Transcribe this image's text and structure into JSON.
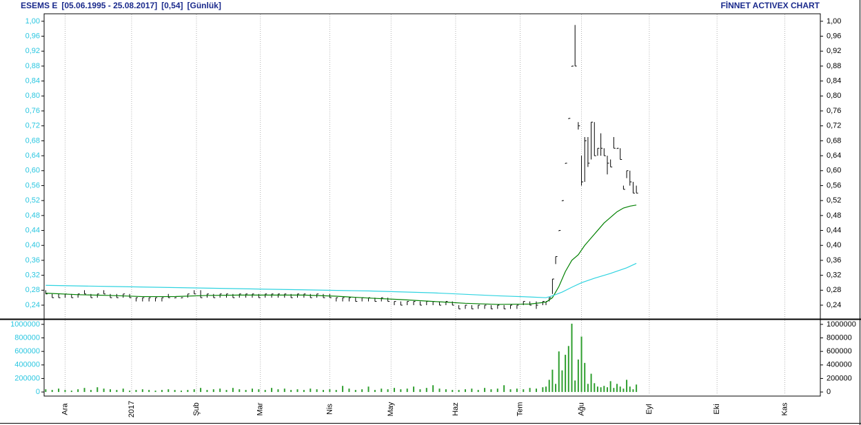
{
  "chart_data": [
    {
      "type": "ohlc",
      "title": "ESEMS E",
      "date_range": "[05.06.1995 - 25.08.2017]",
      "last": "[0,54]",
      "period": "[Günlük]",
      "source": "FİNNET ACTIVEX CHART",
      "color": "#000000",
      "x": [
        0,
        2,
        4,
        6,
        8,
        10,
        12,
        14,
        16,
        18,
        20,
        22,
        24,
        26,
        28,
        30,
        32,
        34,
        36,
        38,
        40,
        42,
        44,
        46,
        48,
        50,
        52,
        54,
        56,
        58,
        60,
        62,
        64,
        66,
        68,
        70,
        72,
        74,
        76,
        78,
        80,
        82,
        84,
        86,
        88,
        90,
        92,
        94,
        96,
        98,
        100,
        102,
        104,
        106,
        108,
        110,
        112,
        114,
        116,
        118,
        120,
        122,
        124,
        126,
        128,
        130,
        132,
        134,
        136,
        138,
        140,
        142,
        144,
        146,
        148,
        150,
        152,
        154,
        155,
        156,
        157,
        158,
        159,
        160,
        161,
        162,
        163,
        164,
        165,
        166,
        167,
        168,
        169,
        170,
        171,
        172,
        173,
        174,
        175,
        176,
        177,
        178,
        179,
        180,
        181,
        182,
        183
      ],
      "high": [
        0.28,
        0.27,
        0.27,
        0.27,
        0.27,
        0.27,
        0.28,
        0.27,
        0.27,
        0.28,
        0.27,
        0.27,
        0.27,
        0.27,
        0.26,
        0.26,
        0.26,
        0.26,
        0.26,
        0.27,
        0.26,
        0.26,
        0.27,
        0.28,
        0.28,
        0.27,
        0.27,
        0.27,
        0.27,
        0.27,
        0.27,
        0.27,
        0.27,
        0.27,
        0.27,
        0.27,
        0.27,
        0.27,
        0.27,
        0.27,
        0.27,
        0.27,
        0.27,
        0.27,
        0.27,
        0.26,
        0.26,
        0.26,
        0.26,
        0.26,
        0.26,
        0.26,
        0.26,
        0.26,
        0.25,
        0.25,
        0.25,
        0.25,
        0.25,
        0.25,
        0.25,
        0.25,
        0.25,
        0.25,
        0.24,
        0.24,
        0.24,
        0.24,
        0.24,
        0.24,
        0.24,
        0.24,
        0.24,
        0.24,
        0.25,
        0.25,
        0.25,
        0.25,
        0.25,
        0.26,
        0.31,
        0.37,
        0.44,
        0.52,
        0.62,
        0.74,
        0.88,
        0.99,
        0.73,
        0.64,
        0.69,
        0.69,
        0.73,
        0.73,
        0.66,
        0.7,
        0.66,
        0.64,
        0.63,
        0.69,
        0.66,
        0.66,
        0.56,
        0.6,
        0.6,
        0.57,
        0.56
      ],
      "low": [
        0.27,
        0.26,
        0.26,
        0.26,
        0.26,
        0.26,
        0.27,
        0.26,
        0.26,
        0.27,
        0.26,
        0.26,
        0.26,
        0.26,
        0.25,
        0.25,
        0.25,
        0.25,
        0.25,
        0.26,
        0.26,
        0.26,
        0.26,
        0.27,
        0.26,
        0.26,
        0.26,
        0.26,
        0.26,
        0.26,
        0.26,
        0.26,
        0.26,
        0.26,
        0.26,
        0.26,
        0.26,
        0.26,
        0.26,
        0.26,
        0.26,
        0.26,
        0.26,
        0.26,
        0.26,
        0.25,
        0.25,
        0.25,
        0.25,
        0.25,
        0.25,
        0.25,
        0.25,
        0.25,
        0.24,
        0.24,
        0.24,
        0.24,
        0.24,
        0.24,
        0.24,
        0.24,
        0.24,
        0.24,
        0.23,
        0.23,
        0.23,
        0.23,
        0.23,
        0.23,
        0.23,
        0.23,
        0.23,
        0.23,
        0.24,
        0.24,
        0.23,
        0.24,
        0.24,
        0.25,
        0.27,
        0.35,
        0.44,
        0.52,
        0.62,
        0.74,
        0.88,
        0.88,
        0.71,
        0.56,
        0.57,
        0.61,
        0.63,
        0.64,
        0.64,
        0.64,
        0.64,
        0.59,
        0.61,
        0.66,
        0.66,
        0.63,
        0.55,
        0.58,
        0.56,
        0.54,
        0.54
      ],
      "close": [
        0.27,
        0.26,
        0.26,
        0.27,
        0.26,
        0.27,
        0.27,
        0.26,
        0.27,
        0.27,
        0.26,
        0.26,
        0.27,
        0.26,
        0.26,
        0.26,
        0.26,
        0.26,
        0.26,
        0.26,
        0.26,
        0.26,
        0.27,
        0.27,
        0.26,
        0.27,
        0.26,
        0.27,
        0.27,
        0.26,
        0.27,
        0.27,
        0.27,
        0.26,
        0.27,
        0.27,
        0.27,
        0.27,
        0.26,
        0.27,
        0.27,
        0.26,
        0.27,
        0.26,
        0.26,
        0.26,
        0.26,
        0.26,
        0.25,
        0.26,
        0.26,
        0.25,
        0.26,
        0.25,
        0.25,
        0.24,
        0.25,
        0.25,
        0.24,
        0.25,
        0.25,
        0.24,
        0.25,
        0.24,
        0.23,
        0.24,
        0.23,
        0.24,
        0.24,
        0.23,
        0.24,
        0.23,
        0.24,
        0.24,
        0.25,
        0.24,
        0.24,
        0.25,
        0.25,
        0.26,
        0.31,
        0.37,
        0.44,
        0.52,
        0.62,
        0.74,
        0.88,
        0.88,
        0.72,
        0.57,
        0.68,
        0.62,
        0.73,
        0.64,
        0.66,
        0.66,
        0.64,
        0.62,
        0.61,
        0.66,
        0.66,
        0.63,
        0.55,
        0.6,
        0.57,
        0.54,
        0.54
      ],
      "series": [
        {
          "color": "#008000",
          "x": [
            0,
            10,
            20,
            30,
            40,
            50,
            60,
            70,
            80,
            90,
            100,
            110,
            120,
            130,
            140,
            150,
            155,
            157,
            159,
            161,
            163,
            165,
            167,
            169,
            171,
            173,
            175,
            177,
            179,
            181,
            183
          ],
          "values": [
            0.272,
            0.268,
            0.266,
            0.263,
            0.263,
            0.266,
            0.267,
            0.267,
            0.267,
            0.264,
            0.259,
            0.255,
            0.25,
            0.245,
            0.242,
            0.243,
            0.248,
            0.26,
            0.29,
            0.33,
            0.36,
            0.375,
            0.4,
            0.42,
            0.44,
            0.46,
            0.475,
            0.49,
            0.5,
            0.505,
            0.508
          ]
        },
        {
          "color": "#2ed3e0",
          "x": [
            0,
            20,
            40,
            60,
            80,
            100,
            120,
            140,
            150,
            155,
            157,
            160,
            163,
            166,
            170,
            175,
            180,
            183
          ],
          "values": [
            0.293,
            0.29,
            0.287,
            0.284,
            0.281,
            0.278,
            0.273,
            0.265,
            0.262,
            0.26,
            0.265,
            0.275,
            0.288,
            0.3,
            0.312,
            0.325,
            0.34,
            0.352
          ]
        }
      ],
      "xlim": [
        -0.5,
        240
      ],
      "xticks": [
        {
          "value": 6,
          "label": "Ara"
        },
        {
          "value": 26.6,
          "label": "2017"
        },
        {
          "value": 46.7,
          "label": "Şub"
        },
        {
          "value": 66.5,
          "label": "Mar"
        },
        {
          "value": 88,
          "label": "Nis"
        },
        {
          "value": 107,
          "label": "May"
        },
        {
          "value": 127,
          "label": "Haz"
        },
        {
          "value": 147,
          "label": "Tem"
        },
        {
          "value": 166,
          "label": "Ağu"
        },
        {
          "value": 187,
          "label": "Eyl"
        },
        {
          "value": 208,
          "label": "Eki"
        },
        {
          "value": 229,
          "label": "Kas"
        }
      ],
      "ylim": [
        0.205,
        1.02
      ],
      "yticks": [
        {
          "value": 0.24,
          "label": "0,24"
        },
        {
          "value": 0.28,
          "label": "0,28"
        },
        {
          "value": 0.32,
          "label": "0,32"
        },
        {
          "value": 0.36,
          "label": "0,36"
        },
        {
          "value": 0.4,
          "label": "0,40"
        },
        {
          "value": 0.44,
          "label": "0,44"
        },
        {
          "value": 0.48,
          "label": "0,48"
        },
        {
          "value": 0.52,
          "label": "0,52"
        },
        {
          "value": 0.56,
          "label": "0,56"
        },
        {
          "value": 0.6,
          "label": "0,60"
        },
        {
          "value": 0.64,
          "label": "0,64"
        },
        {
          "value": 0.68,
          "label": "0,68"
        },
        {
          "value": 0.72,
          "label": "0,72"
        },
        {
          "value": 0.76,
          "label": "0,76"
        },
        {
          "value": 0.8,
          "label": "0,80"
        },
        {
          "value": 0.84,
          "label": "0,84"
        },
        {
          "value": 0.88,
          "label": "0,88"
        },
        {
          "value": 0.92,
          "label": "0,92"
        },
        {
          "value": 0.96,
          "label": "0,96"
        },
        {
          "value": 1.0,
          "label": "1,00"
        }
      ]
    },
    {
      "type": "bar",
      "color": "#2e9e2e",
      "x": [
        0,
        2,
        4,
        6,
        8,
        10,
        12,
        14,
        16,
        18,
        20,
        22,
        24,
        26,
        28,
        30,
        32,
        34,
        36,
        38,
        40,
        42,
        44,
        46,
        48,
        50,
        52,
        54,
        56,
        58,
        60,
        62,
        64,
        66,
        68,
        70,
        72,
        74,
        76,
        78,
        80,
        82,
        84,
        86,
        88,
        90,
        92,
        94,
        96,
        98,
        100,
        102,
        104,
        106,
        108,
        110,
        112,
        114,
        116,
        118,
        120,
        122,
        124,
        126,
        128,
        130,
        132,
        134,
        136,
        138,
        140,
        142,
        144,
        146,
        148,
        150,
        152,
        154,
        155,
        156,
        157,
        158,
        159,
        160,
        161,
        162,
        163,
        164,
        165,
        166,
        167,
        168,
        169,
        170,
        171,
        172,
        173,
        174,
        175,
        176,
        177,
        178,
        179,
        180,
        181,
        182,
        183
      ],
      "values": [
        40000,
        30000,
        50000,
        30000,
        20000,
        40000,
        60000,
        30000,
        70000,
        50000,
        40000,
        30000,
        50000,
        20000,
        30000,
        40000,
        30000,
        20000,
        30000,
        40000,
        30000,
        20000,
        30000,
        40000,
        60000,
        30000,
        40000,
        50000,
        30000,
        60000,
        40000,
        30000,
        50000,
        40000,
        30000,
        60000,
        40000,
        50000,
        30000,
        40000,
        30000,
        50000,
        40000,
        30000,
        40000,
        30000,
        90000,
        50000,
        30000,
        40000,
        80000,
        30000,
        50000,
        40000,
        60000,
        40000,
        50000,
        80000,
        40000,
        60000,
        100000,
        50000,
        40000,
        30000,
        30000,
        40000,
        50000,
        30000,
        60000,
        40000,
        50000,
        100000,
        40000,
        50000,
        40000,
        60000,
        50000,
        70000,
        80000,
        180000,
        330000,
        120000,
        600000,
        320000,
        550000,
        680000,
        1010000,
        170000,
        480000,
        820000,
        430000,
        120000,
        270000,
        130000,
        80000,
        70000,
        90000,
        70000,
        160000,
        60000,
        120000,
        80000,
        50000,
        180000,
        80000,
        40000,
        110000
      ],
      "xlim": [
        -0.5,
        240
      ],
      "ylim": [
        -40000,
        1060000
      ],
      "yticks": [
        0,
        200000,
        400000,
        600000,
        800000,
        1000000
      ]
    }
  ]
}
